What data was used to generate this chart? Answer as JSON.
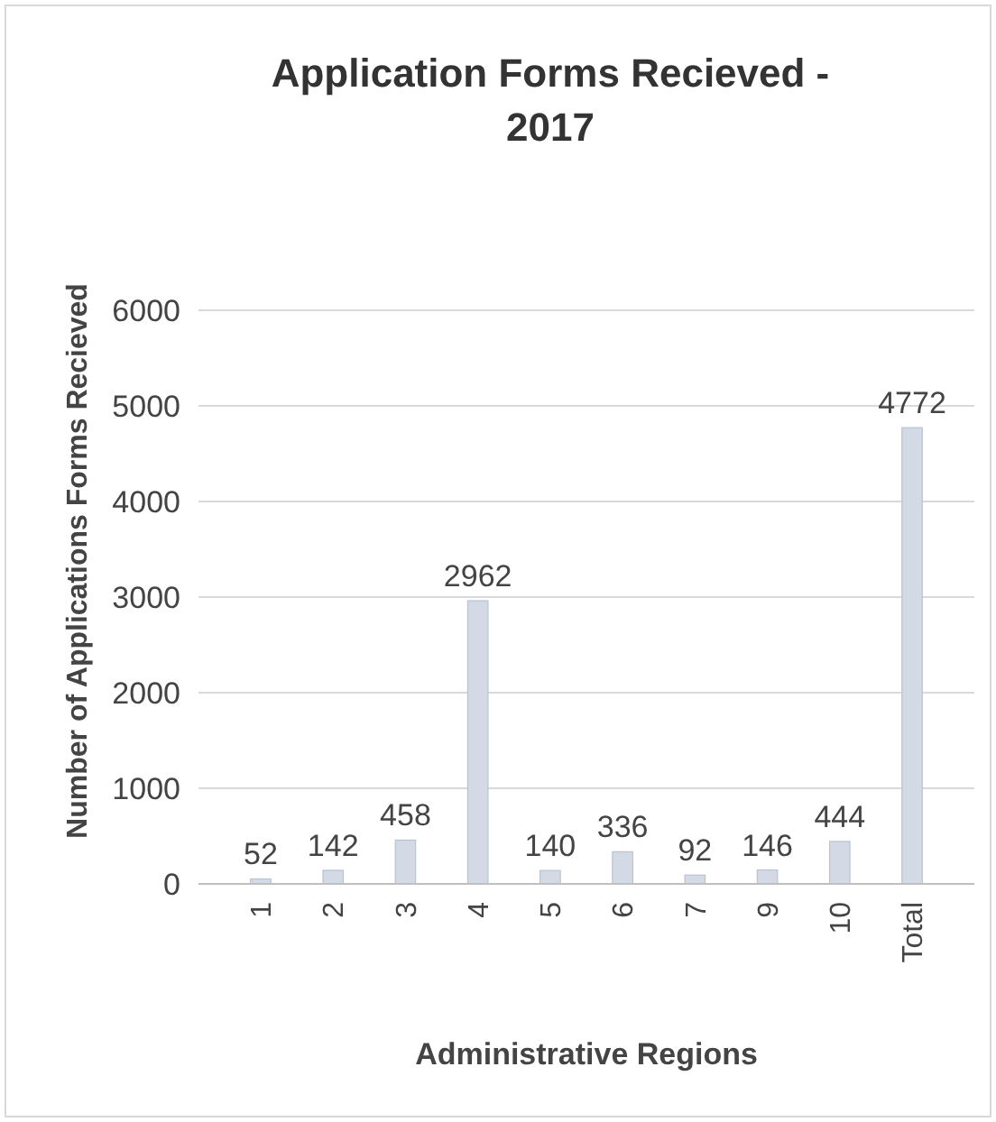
{
  "chart_data": {
    "type": "bar",
    "title": "Application Forms Recieved - 2017",
    "xlabel": "Administrative Regions",
    "ylabel": "Number of Applications Forms Recieved",
    "categories": [
      "1",
      "2",
      "3",
      "4",
      "5",
      "6",
      "7",
      "9",
      "10",
      "Total"
    ],
    "values": [
      52,
      142,
      458,
      2962,
      140,
      336,
      92,
      146,
      444,
      4772
    ],
    "color": "#d3dae6",
    "ylim": [
      0,
      6000
    ],
    "yticks": [
      0,
      1000,
      2000,
      3000,
      4000,
      5000,
      6000
    ],
    "grid": "y",
    "data_labels": true
  }
}
